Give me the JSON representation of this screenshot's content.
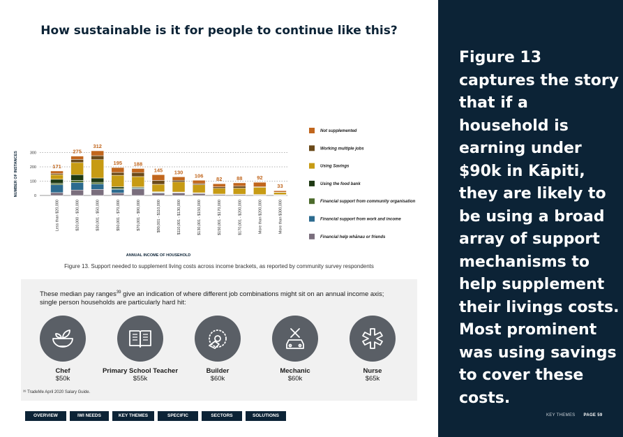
{
  "chart_title": "How sustainable is it for people to continue like this?",
  "chart_data": {
    "type": "bar",
    "stacked": true,
    "title": "How sustainable is it for people to continue like this?",
    "xlabel": "ANNUAL INCOME OF HOUSEHOLD",
    "ylabel": "NUMBER OF INSTANCES",
    "ylim": [
      0,
      320
    ],
    "yticks": [
      0,
      100,
      200,
      300
    ],
    "grid": "horizontal-dotted",
    "legend_position": "right",
    "categories": [
      "Less than $20,000",
      "$20,000 - $30,000",
      "$30,001 - $50,000",
      "$50,001 - $70,000",
      "$70,001 - $90,000",
      "$90,001 - $110,000",
      "$110,001 - $130,000",
      "$130,001 - $150,000",
      "$150,001 - $170,000",
      "$170,001 - $200,000",
      "More than $200,000",
      "More than $300,000"
    ],
    "totals": [
      171,
      275,
      312,
      195,
      188,
      145,
      130,
      106,
      82,
      88,
      92,
      33
    ],
    "series": [
      {
        "name": "Financial help whānau or friends",
        "color": "#7a6e7d",
        "values": [
          20,
          38,
          42,
          18,
          45,
          16,
          18,
          14,
          7,
          6,
          4,
          3
        ]
      },
      {
        "name": "Financial support from work and income",
        "color": "#2c6b8f",
        "values": [
          55,
          52,
          38,
          25,
          6,
          4,
          2,
          2,
          1,
          1,
          1,
          1
        ]
      },
      {
        "name": "Financial support from community organisation",
        "color": "#4c6b2c",
        "values": [
          10,
          15,
          12,
          6,
          4,
          3,
          2,
          2,
          1,
          1,
          1,
          1
        ]
      },
      {
        "name": "Using the food bank",
        "color": "#1f3a14",
        "values": [
          28,
          40,
          30,
          12,
          5,
          3,
          2,
          1,
          1,
          1,
          1,
          1
        ]
      },
      {
        "name": "Using Savings",
        "color": "#c79b14",
        "values": [
          32,
          85,
          128,
          80,
          72,
          52,
          70,
          56,
          40,
          42,
          50,
          15
        ]
      },
      {
        "name": "Working multiple jobs",
        "color": "#6b4a1a",
        "values": [
          8,
          22,
          28,
          20,
          28,
          27,
          12,
          8,
          10,
          14,
          4,
          2
        ]
      },
      {
        "name": "Not supplemented",
        "color": "#c1661d",
        "values": [
          18,
          23,
          34,
          34,
          28,
          40,
          24,
          23,
          22,
          23,
          31,
          10
        ]
      }
    ]
  },
  "legend_order": [
    {
      "name": "Not supplemented",
      "color": "#c1661d"
    },
    {
      "name": "Working multiple jobs",
      "color": "#6b4a1a"
    },
    {
      "name": "Using Savings",
      "color": "#c79b14"
    },
    {
      "name": "Using the food bank",
      "color": "#1f3a14"
    },
    {
      "name": "Financial support from community organisation",
      "color": "#4c6b2c"
    },
    {
      "name": "Financial support from work and income",
      "color": "#2c6b8f"
    },
    {
      "name": "Financial help whānau or friends",
      "color": "#7a6e7d"
    }
  ],
  "caption": "Figure 13. Support needed to supplement living costs across income brackets, as reported by community survey respondents",
  "panel": {
    "intro_a": "These median pay ranges",
    "intro_sup": "39",
    "intro_b": " give an indication of where different job combinations might sit on an annual income axis; single person households are particularly hard hit:",
    "footnote": "³⁹ TradeMe April 2020 Salary Guide.",
    "jobs": [
      {
        "name": "Chef",
        "pay": "$50k",
        "icon": "bowl-icon"
      },
      {
        "name": "Primary School Teacher",
        "pay": "$55k",
        "icon": "book-icon"
      },
      {
        "name": "Builder",
        "pay": "$60k",
        "icon": "saw-icon"
      },
      {
        "name": "Mechanic",
        "pay": "$60k",
        "icon": "car-tools-icon"
      },
      {
        "name": "Nurse",
        "pay": "$65k",
        "icon": "medical-star-icon"
      }
    ]
  },
  "nav": [
    "OVERVIEW",
    "IWI NEEDS",
    "KEY THEMES",
    "SPECIFIC GROUPS",
    "SECTORS",
    "SOLUTIONS"
  ],
  "sidebar_text": "Figure 13 captures the story that if a household is earning under $90k in Kāpiti, they are likely to be using a broad array of support mechanisms to help supplement their livings costs. Most prominent was using savings to cover these costs.",
  "footer": {
    "section": "KEY THEMES",
    "page": "PAGE 59"
  }
}
